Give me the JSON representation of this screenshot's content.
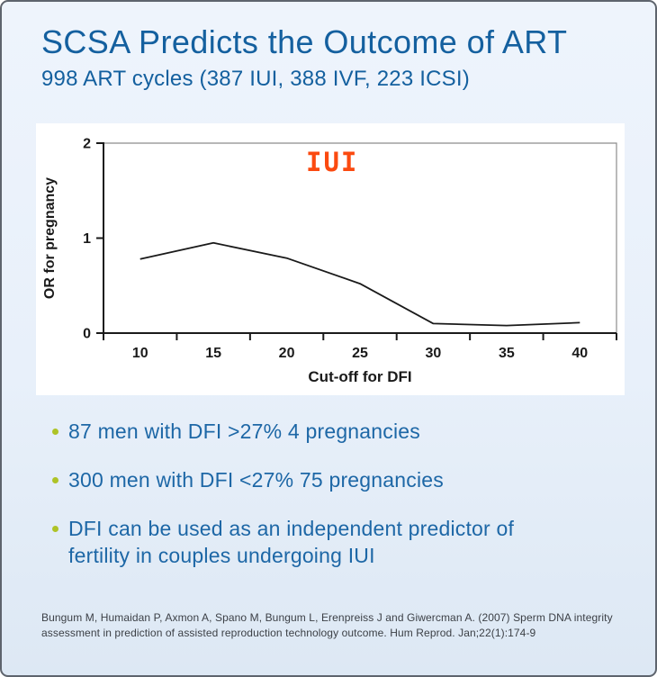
{
  "header": {
    "title": "SCSA Predicts the Outcome of ART",
    "subtitle": "998 ART cycles (387 IUI, 388 IVF, 223 ICSI)"
  },
  "chart_data": {
    "type": "line",
    "annotation": "IUI",
    "annotation_color": "#fb4a10",
    "xlabel": "Cut-off for DFI",
    "ylabel": "OR for pregnancy",
    "categories": [
      10,
      15,
      20,
      25,
      30,
      35,
      40
    ],
    "series": [
      {
        "name": "IUI",
        "values": [
          0.78,
          0.95,
          0.79,
          0.52,
          0.1,
          0.08,
          0.11
        ]
      }
    ],
    "ylim": [
      0,
      2
    ],
    "yticks": [
      0,
      1,
      2
    ],
    "line_color": "#1a1a1a",
    "axis_color": "#1a1a1a",
    "border_color": "#8c8c8c",
    "grid": false,
    "legend_position": "none",
    "plot_background": "#ffffff"
  },
  "bullets": {
    "bullet_color": "#aec327",
    "items": [
      {
        "text": "87 men with DFI >27% 4 pregnancies"
      },
      {
        "text": "300 men with DFI <27% 75 pregnancies"
      },
      {
        "text": "DFI can be used as an independent predictor of fertility in couples undergoing IUI"
      }
    ]
  },
  "footer": {
    "citation": "Bungum M, Humaidan P, Axmon A, Spano M, Bungum L, Erenpreiss J and Giwercman A. (2007) Sperm DNA integrity assessment in prediction of assisted reproduction technology outcome. Hum Reprod. Jan;22(1):174-9"
  },
  "colors": {
    "title_blue": "#14609f",
    "body_blue": "#1d67a6",
    "background": "#e8f0fa"
  }
}
